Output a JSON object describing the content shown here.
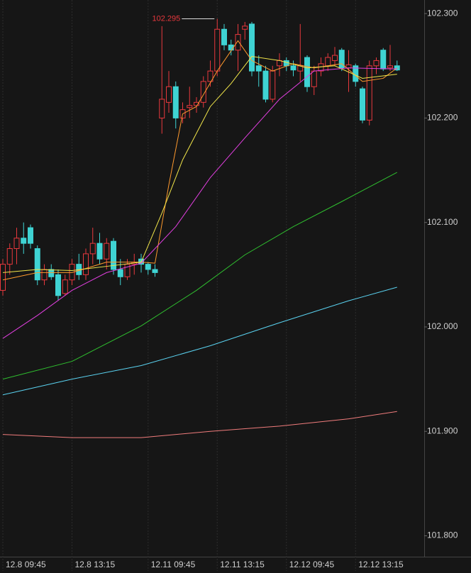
{
  "chart_data": {
    "type": "candlestick",
    "annotation": 102.295,
    "annotation_index": 31,
    "up_color": "#e8383d",
    "down_color": "#3fd3d3",
    "open": [
      102.035,
      102.06,
      102.075,
      102.085,
      102.095,
      102.075,
      102.045,
      102.055,
      102.05,
      102.032,
      102.045,
      102.06,
      102.05,
      102.07,
      102.08,
      102.065,
      102.082,
      102.055,
      102.048,
      102.06,
      102.065,
      102.06,
      102.055,
      102.2,
      102.215,
      102.23,
      102.2,
      102.21,
      102.212,
      102.215,
      102.235,
      102.245,
      102.285,
      102.27,
      102.265,
      102.285,
      102.29,
      102.25,
      102.245,
      102.218,
      102.25,
      102.255,
      102.25,
      102.245,
      102.258,
      102.23,
      102.245,
      102.25,
      102.255,
      102.265,
      102.248,
      102.25,
      102.228,
      102.198,
      102.25,
      102.265,
      102.248,
      102.25
    ],
    "high": [
      102.065,
      102.08,
      102.095,
      102.1,
      102.098,
      102.078,
      102.06,
      102.06,
      102.055,
      102.05,
      102.065,
      102.07,
      102.075,
      102.095,
      102.09,
      102.085,
      102.085,
      102.065,
      102.065,
      102.07,
      102.07,
      102.062,
      102.06,
      102.288,
      102.245,
      102.235,
      102.215,
      102.23,
      102.22,
      102.24,
      102.255,
      102.295,
      102.29,
      102.275,
      102.29,
      102.292,
      102.292,
      102.26,
      102.25,
      102.25,
      102.262,
      102.258,
      102.255,
      102.29,
      102.26,
      102.25,
      102.258,
      102.262,
      102.268,
      102.267,
      102.265,
      102.252,
      102.23,
      102.255,
      102.258,
      102.267,
      102.27,
      102.255
    ],
    "low": [
      102.03,
      102.05,
      102.06,
      102.07,
      102.075,
      102.04,
      102.04,
      102.045,
      102.025,
      102.03,
      102.04,
      102.045,
      102.045,
      102.06,
      102.06,
      102.055,
      102.05,
      102.04,
      102.045,
      102.05,
      102.052,
      102.05,
      102.048,
      102.185,
      102.205,
      102.19,
      102.195,
      102.2,
      102.205,
      102.21,
      102.23,
      102.24,
      102.265,
      102.26,
      102.245,
      102.275,
      102.24,
      102.23,
      102.215,
      102.215,
      102.24,
      102.245,
      102.24,
      102.235,
      102.225,
      102.222,
      102.24,
      102.245,
      102.25,
      102.245,
      102.225,
      102.23,
      102.195,
      102.193,
      102.242,
      102.245,
      102.245,
      102.245
    ],
    "close": [
      102.06,
      102.075,
      102.085,
      102.08,
      102.08,
      102.045,
      102.055,
      102.048,
      102.03,
      102.045,
      102.06,
      102.05,
      102.07,
      102.08,
      102.065,
      102.08,
      102.055,
      102.048,
      102.06,
      102.062,
      102.06,
      102.055,
      102.052,
      102.218,
      102.23,
      102.2,
      102.208,
      102.212,
      102.215,
      102.235,
      102.245,
      102.285,
      102.27,
      102.265,
      102.28,
      102.288,
      102.245,
      102.245,
      102.218,
      102.245,
      102.255,
      102.25,
      102.246,
      102.25,
      102.23,
      102.245,
      102.252,
      102.258,
      102.26,
      102.248,
      102.251,
      102.235,
      102.198,
      102.25,
      102.255,
      102.247,
      102.25,
      102.246
    ],
    "series": [
      {
        "color": "#ff9a2e",
        "x": [
          0,
          5,
          10,
          15,
          20,
          22,
          24,
          26,
          28,
          31,
          34,
          36,
          39,
          42,
          45,
          49,
          52,
          55,
          57
        ],
        "values": [
          102.045,
          102.052,
          102.052,
          102.062,
          102.062,
          102.061,
          102.136,
          102.204,
          102.211,
          102.245,
          102.274,
          102.255,
          102.245,
          102.252,
          102.248,
          102.252,
          102.235,
          102.238,
          102.248
        ]
      },
      {
        "color": "#f2e64a",
        "x": [
          0,
          5,
          10,
          15,
          20,
          23,
          26,
          30,
          33,
          36,
          40,
          44,
          48,
          52,
          57
        ],
        "values": [
          102.052,
          102.055,
          102.054,
          102.058,
          102.062,
          102.109,
          102.16,
          102.211,
          102.233,
          102.259,
          102.255,
          102.248,
          102.25,
          102.238,
          102.242
        ]
      },
      {
        "color": "#e23fe0",
        "x": [
          0,
          5,
          10,
          15,
          20,
          25,
          30,
          35,
          40,
          45,
          50,
          57
        ],
        "values": [
          101.989,
          102.011,
          102.035,
          102.052,
          102.061,
          102.096,
          102.143,
          102.181,
          102.218,
          102.245,
          102.248,
          102.247
        ]
      },
      {
        "color": "#2fbf2f",
        "x": [
          0,
          10,
          20,
          28,
          35,
          42,
          49,
          57
        ],
        "values": [
          101.95,
          101.967,
          102.001,
          102.035,
          102.069,
          102.096,
          102.12,
          102.148
        ]
      },
      {
        "color": "#5ad2f0",
        "x": [
          0,
          10,
          20,
          30,
          40,
          50,
          57
        ],
        "values": [
          101.935,
          101.95,
          101.963,
          101.982,
          102.004,
          102.025,
          102.038
        ]
      },
      {
        "color": "#f07c7c",
        "x": [
          0,
          10,
          20,
          30,
          40,
          50,
          57
        ],
        "values": [
          101.897,
          101.894,
          101.894,
          101.9,
          101.905,
          101.912,
          101.919
        ]
      }
    ],
    "ylim": [
      101.78,
      102.313
    ],
    "yticks": [
      {
        "value": 102.3,
        "label": "102.300"
      },
      {
        "value": 102.2,
        "label": "102.200"
      },
      {
        "value": 102.1,
        "label": "102.100"
      },
      {
        "value": 102.0,
        "label": "102.000"
      },
      {
        "value": 101.9,
        "label": "101.900"
      },
      {
        "value": 101.8,
        "label": "101.800"
      }
    ],
    "xticks": [
      {
        "value": 0,
        "label": "12.8 09:45"
      },
      {
        "value": 10,
        "label": "12.8 13:15"
      },
      {
        "value": 21,
        "label": "12.11 09:45"
      },
      {
        "value": 31,
        "label": "12.11 13:15"
      },
      {
        "value": 41,
        "label": "12.12 09:45"
      },
      {
        "value": 51,
        "label": "12.12 13:15"
      }
    ]
  }
}
